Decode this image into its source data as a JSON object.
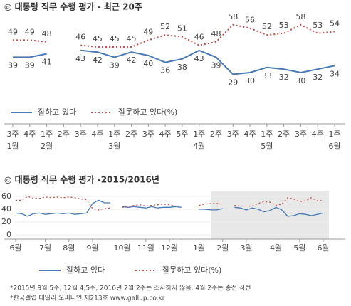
{
  "chart_data": [
    {
      "type": "line",
      "title": "◎  대통령 직무 수행 평가 - 최근 20주",
      "categories": [
        "3주",
        "4주",
        "1주",
        "2주",
        "3주",
        "4주",
        "1주",
        "2주",
        "3주",
        "4주",
        "5주",
        "1주",
        "2주",
        "3주",
        "4주",
        "1주",
        "2주",
        "3주",
        "4주",
        "1주"
      ],
      "month_labels": [
        "1월",
        null,
        "2월",
        null,
        null,
        null,
        "3월",
        null,
        null,
        null,
        null,
        "4월",
        null,
        null,
        null,
        "5월",
        null,
        null,
        null,
        "6월"
      ],
      "ylim": [
        20,
        65
      ],
      "series": [
        {
          "name": "잘하고 있다",
          "color": "#4a7ab5",
          "style": "solid",
          "values": [
            39,
            39,
            41,
            null,
            43,
            42,
            39,
            42,
            40,
            36,
            38,
            43,
            39,
            29,
            30,
            33,
            32,
            30,
            32,
            34
          ]
        },
        {
          "name": "잘못하고 있다(%)",
          "color": "#c0504d",
          "style": "dotted",
          "values": [
            49,
            49,
            48,
            null,
            46,
            45,
            45,
            45,
            49,
            52,
            51,
            46,
            48,
            58,
            56,
            52,
            53,
            58,
            53,
            54
          ]
        }
      ]
    },
    {
      "type": "line",
      "title": "◎  대통령 직무 수행 평가 -2015/2016년",
      "categories": [
        "6월",
        null,
        null,
        null,
        null,
        "7월",
        null,
        null,
        null,
        "8월",
        null,
        null,
        null,
        "9월",
        null,
        null,
        null,
        null,
        "10월",
        null,
        null,
        null,
        "11월",
        null,
        null,
        null,
        "12월",
        null,
        null,
        null,
        null,
        "1월",
        null,
        null,
        null,
        "2월",
        null,
        null,
        null,
        "3월",
        null,
        null,
        null,
        null,
        "4월",
        null,
        null,
        null,
        "5월",
        null,
        null,
        null,
        "6월"
      ],
      "ylim": [
        0,
        70
      ],
      "yticks": [
        0,
        20,
        40,
        60
      ],
      "series": [
        {
          "name": "잘하고 있다",
          "color": "#4a7ab5",
          "style": "solid",
          "values": [
            34,
            33,
            29,
            33,
            34,
            32,
            33,
            34,
            33,
            34,
            32,
            33,
            34,
            49,
            54,
            50,
            50,
            null,
            44,
            43,
            44,
            43,
            42,
            44,
            42,
            43,
            43,
            44,
            43,
            null,
            null,
            40,
            40,
            39,
            39,
            41,
            null,
            43,
            42,
            39,
            42,
            40,
            36,
            38,
            43,
            39,
            29,
            30,
            33,
            32,
            30,
            32,
            34
          ]
        },
        {
          "name": "잘못하고 있다(%)",
          "color": "#c0504d",
          "style": "dotted",
          "values": [
            54,
            54,
            60,
            57,
            57,
            59,
            58,
            59,
            58,
            59,
            58,
            56,
            55,
            41,
            39,
            41,
            42,
            null,
            43,
            44,
            46,
            47,
            45,
            46,
            47,
            48,
            47,
            45,
            45,
            null,
            null,
            46,
            48,
            49,
            49,
            48,
            null,
            46,
            45,
            45,
            45,
            49,
            52,
            51,
            46,
            48,
            58,
            56,
            52,
            53,
            58,
            53,
            54
          ]
        }
      ],
      "footnotes": [
        "*2015년 9월 5주, 12월 4,5주, 2016년 2월 2주는 조사하지 않음. 4월 2주는 총선 직전",
        "*한국갤럽 데일리 오피니언 제213호 www.gallup.co.kr"
      ]
    }
  ]
}
